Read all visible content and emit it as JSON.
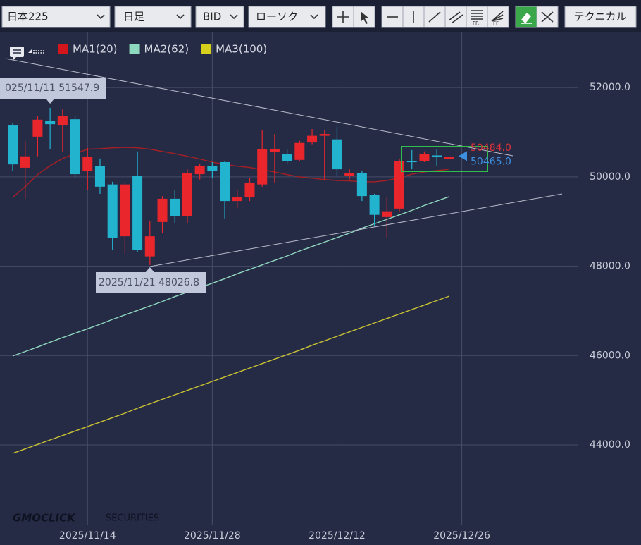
{
  "toolbar": {
    "symbol": "日本225",
    "period": "日足",
    "side": "BID",
    "chart_type": "ローソク",
    "technical": "テクニカル"
  },
  "logo": {
    "brand": "GMOCLICK",
    "sub": "SECURITIES"
  },
  "chart_data": {
    "type": "candlestick",
    "categories": [
      null,
      null,
      null,
      null,
      null,
      null,
      "2025/11/14",
      null,
      null,
      null,
      null,
      null,
      null,
      null,
      null,
      null,
      "2025/11/28",
      null,
      null,
      null,
      null,
      null,
      null,
      null,
      null,
      null,
      "2025/12/12",
      null,
      null,
      null,
      null,
      null,
      null,
      null,
      null,
      null,
      "2025/12/26"
    ],
    "open": [
      51150,
      50205,
      50900,
      51260,
      51150,
      51290,
      50140,
      50250,
      49830,
      48670,
      50020,
      48220,
      48990,
      49510,
      49120,
      50060,
      50250,
      50330,
      49460,
      49540,
      49830,
      50550,
      50510,
      50380,
      50770,
      50920,
      50840,
      50020,
      50090,
      49590,
      49100,
      49290,
      50360,
      50360,
      50480,
      50400,
      null
    ],
    "high": [
      51200,
      50805,
      51360,
      51547.9,
      51510,
      51360,
      50650,
      50410,
      49890,
      49890,
      50570,
      49020,
      49570,
      49700,
      50170,
      50300,
      50330,
      50360,
      49700,
      49970,
      51040,
      50960,
      50620,
      50810,
      51070,
      51040,
      51120,
      50170,
      50130,
      49620,
      49540,
      50410,
      50600,
      50570,
      50620,
      50450,
      null
    ],
    "low": [
      50140,
      49510,
      50460,
      50620,
      50570,
      49980,
      49700,
      49620,
      48370,
      48280,
      48310,
      48026.8,
      48750,
      48970,
      48970,
      49940,
      49980,
      49070,
      49300,
      49460,
      49780,
      49860,
      50300,
      50360,
      50730,
      49940,
      50020,
      49940,
      49460,
      48910,
      48640,
      49230,
      50170,
      50330,
      50240,
      50390,
      null
    ],
    "close": [
      50280,
      50460,
      51280,
      51180,
      51370,
      50060,
      50440,
      49780,
      48630,
      49830,
      48360,
      48670,
      49510,
      49130,
      50090,
      50240,
      50130,
      49460,
      49540,
      49860,
      50620,
      50630,
      50360,
      50760,
      50920,
      50960,
      50170,
      50080,
      49570,
      49150,
      49230,
      50360,
      50330,
      50510,
      50460,
      50440,
      null
    ],
    "up_color": "#e8262c",
    "down_color": "#22b3cf",
    "series": [
      {
        "name": "MA1(20)",
        "color": "#d4161c",
        "line_color": "#a51f25",
        "values": [
          49540,
          49780,
          50050,
          50250,
          50410,
          50520,
          50620,
          50630,
          50650,
          50660,
          50650,
          50620,
          50570,
          50520,
          50460,
          50400,
          50330,
          50280,
          50240,
          50210,
          50160,
          50110,
          50050,
          50000,
          49970,
          49940,
          49920,
          49910,
          49890,
          49890,
          49920,
          49980,
          50060,
          50110,
          50140,
          50170,
          null
        ]
      },
      {
        "name": "MA2(62)",
        "color": "#8fd8c0",
        "line_color": "#8fd8c0",
        "values": [
          45990,
          46090,
          46190,
          46300,
          46400,
          46500,
          46600,
          46700,
          46810,
          46910,
          47010,
          47110,
          47210,
          47320,
          47420,
          47520,
          47620,
          47720,
          47830,
          47930,
          48030,
          48130,
          48230,
          48340,
          48440,
          48540,
          48640,
          48740,
          48850,
          48950,
          49050,
          49150,
          49250,
          49360,
          49460,
          49560,
          null
        ]
      },
      {
        "name": "MA3(100)",
        "color": "#d6cf1c",
        "line_color": "#c9c233",
        "values": [
          43810,
          43910,
          44010,
          44110,
          44210,
          44310,
          44410,
          44510,
          44610,
          44710,
          44820,
          44920,
          45020,
          45120,
          45220,
          45320,
          45420,
          45520,
          45620,
          45720,
          45820,
          45920,
          46020,
          46120,
          46230,
          46330,
          46430,
          46530,
          46630,
          46730,
          46830,
          46930,
          47030,
          47130,
          47230,
          47330,
          null
        ]
      }
    ],
    "ylim": [
      42200,
      53250
    ],
    "yticks": [
      {
        "value": 44000,
        "label": "44000.0"
      },
      {
        "value": 46000,
        "label": "46000.0"
      },
      {
        "value": 48000,
        "label": "48000.0"
      },
      {
        "value": 50000,
        "label": "50000.0"
      },
      {
        "value": 52000,
        "label": "52000.0"
      }
    ],
    "grid": true,
    "annotations": [
      "025/11/11 51547.9",
      "2025/11/21 48026.8"
    ],
    "price_labels": [
      {
        "value": 50484,
        "label": "50484.0",
        "color": "#e0323a"
      },
      {
        "value": 50465,
        "label": "50465.0",
        "color": "#3d8fe0"
      }
    ]
  }
}
